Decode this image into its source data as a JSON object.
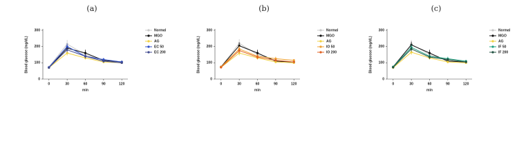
{
  "chart_data": [
    {
      "type": "line",
      "title": "(a)",
      "xlabel": "min",
      "ylabel": "Blood glucose (mg/dL)",
      "x": [
        0,
        30,
        60,
        90,
        120
      ],
      "xlim": [
        -10,
        130
      ],
      "xticks": [
        0,
        30,
        60,
        90,
        120
      ],
      "ylim": [
        0,
        300
      ],
      "yticks": [
        0,
        100,
        200,
        300
      ],
      "series": [
        {
          "name": "Normal",
          "color": "#c8c8c8",
          "values": [
            75,
            215,
            150,
            115,
            100
          ],
          "errors": [
            6,
            25,
            15,
            8,
            6
          ]
        },
        {
          "name": "MGO",
          "color": "#111111",
          "values": [
            70,
            190,
            160,
            115,
            105
          ],
          "errors": [
            5,
            20,
            20,
            10,
            8
          ]
        },
        {
          "name": "AG",
          "color": "#f0d040",
          "values": [
            70,
            160,
            130,
            105,
            100
          ],
          "errors": [
            5,
            15,
            10,
            8,
            6
          ]
        },
        {
          "name": "EC 50",
          "color": "#3050c8",
          "values": [
            72,
            200,
            140,
            120,
            105
          ],
          "errors": [
            5,
            18,
            12,
            10,
            8
          ]
        },
        {
          "name": "EC 200",
          "color": "#404a90",
          "values": [
            70,
            180,
            140,
            110,
            100
          ],
          "errors": [
            5,
            15,
            12,
            8,
            6
          ]
        }
      ]
    },
    {
      "type": "line",
      "title": "(b)",
      "xlabel": "min",
      "ylabel": "Blood glucose (mg/dL)",
      "x": [
        0,
        30,
        60,
        90,
        120
      ],
      "xlim": [
        -10,
        130
      ],
      "xticks": [
        0,
        30,
        60,
        90,
        120
      ],
      "ylim": [
        0,
        300
      ],
      "yticks": [
        0,
        100,
        200,
        300
      ],
      "series": [
        {
          "name": "Normal",
          "color": "#c8c8c8",
          "values": [
            75,
            220,
            150,
            115,
            100
          ],
          "errors": [
            6,
            25,
            15,
            8,
            6
          ]
        },
        {
          "name": "MGO",
          "color": "#111111",
          "values": [
            75,
            205,
            160,
            110,
            105
          ],
          "errors": [
            5,
            20,
            20,
            10,
            8
          ]
        },
        {
          "name": "AG",
          "color": "#f0d040",
          "values": [
            72,
            160,
            130,
            105,
            100
          ],
          "errors": [
            5,
            15,
            10,
            8,
            6
          ]
        },
        {
          "name": "IO 50",
          "color": "#f0a030",
          "values": [
            75,
            185,
            140,
            125,
            115
          ],
          "errors": [
            5,
            18,
            12,
            12,
            8
          ]
        },
        {
          "name": "IO 200",
          "color": "#e06020",
          "values": [
            72,
            175,
            135,
            115,
            105
          ],
          "errors": [
            5,
            15,
            12,
            8,
            6
          ]
        }
      ]
    },
    {
      "type": "line",
      "title": "(c)",
      "xlabel": "min",
      "ylabel": "Blood glucose (mg/dL)",
      "x": [
        0,
        30,
        60,
        90,
        120
      ],
      "xlim": [
        -10,
        130
      ],
      "xticks": [
        0,
        30,
        60,
        90,
        120
      ],
      "ylim": [
        0,
        300
      ],
      "yticks": [
        0,
        100,
        200,
        300
      ],
      "series": [
        {
          "name": "Normal",
          "color": "#c8c8c8",
          "values": [
            75,
            215,
            150,
            115,
            100
          ],
          "errors": [
            6,
            25,
            15,
            8,
            6
          ]
        },
        {
          "name": "MGO",
          "color": "#111111",
          "values": [
            75,
            210,
            160,
            110,
            105
          ],
          "errors": [
            5,
            20,
            20,
            10,
            8
          ]
        },
        {
          "name": "AG",
          "color": "#f0d040",
          "values": [
            70,
            165,
            130,
            105,
            100
          ],
          "errors": [
            5,
            15,
            10,
            8,
            6
          ]
        },
        {
          "name": "IF 50",
          "color": "#20a080",
          "values": [
            75,
            195,
            140,
            125,
            110
          ],
          "errors": [
            5,
            18,
            12,
            12,
            8
          ]
        },
        {
          "name": "IF 200",
          "color": "#205040",
          "values": [
            72,
            185,
            135,
            120,
            105
          ],
          "errors": [
            5,
            15,
            12,
            8,
            6
          ]
        }
      ]
    }
  ]
}
